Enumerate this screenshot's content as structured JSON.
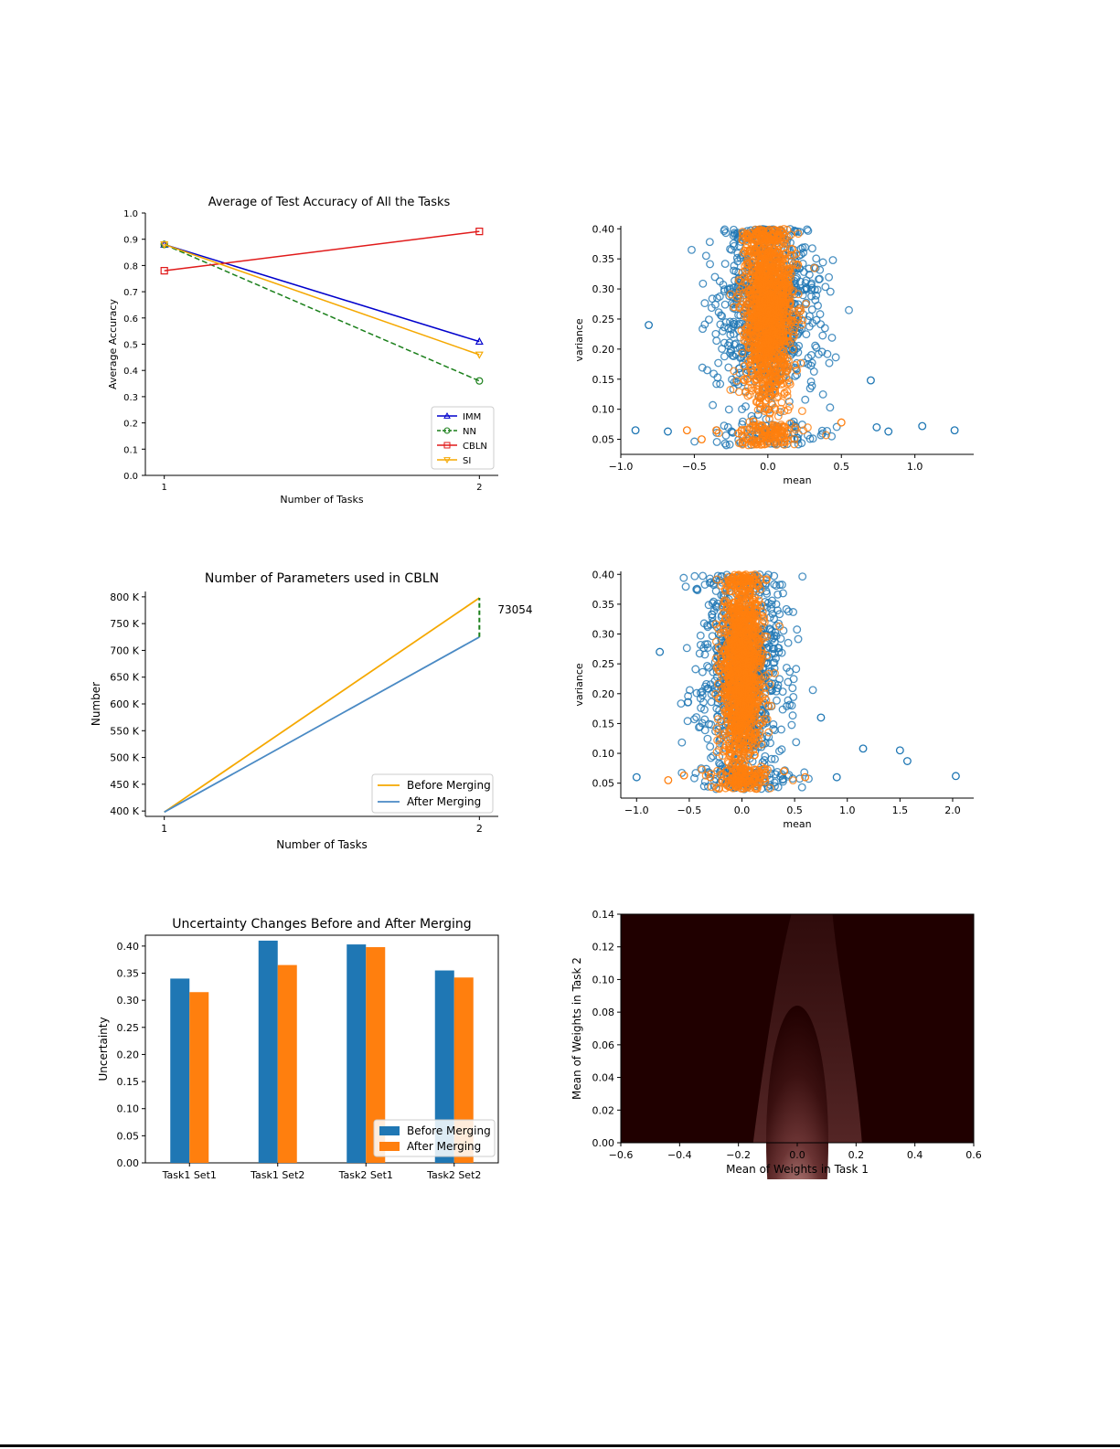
{
  "chart_data": [
    {
      "id": "accuracy",
      "type": "line",
      "title": "Average of Test Accuracy of All the Tasks",
      "xlabel": "Number of Tasks",
      "ylabel": "Average Accuracy",
      "x": [
        1,
        2
      ],
      "xticks": [
        "1",
        "2"
      ],
      "ylim": [
        0.0,
        1.0
      ],
      "yticks": [
        "0.0",
        "0.1",
        "0.2",
        "0.3",
        "0.4",
        "0.5",
        "0.6",
        "0.7",
        "0.8",
        "0.9",
        "1.0"
      ],
      "legend_position": "bottom-right",
      "series": [
        {
          "name": "IMM",
          "values": [
            0.88,
            0.51
          ],
          "color": "#0000cc",
          "marker": "triangle-up",
          "dash": "solid"
        },
        {
          "name": "NN",
          "values": [
            0.88,
            0.36
          ],
          "color": "#1a7f1a",
          "marker": "circle",
          "dash": "dashed"
        },
        {
          "name": "CBLN",
          "values": [
            0.78,
            0.93
          ],
          "color": "#e01a1a",
          "marker": "square",
          "dash": "solid"
        },
        {
          "name": "SI",
          "values": [
            0.88,
            0.46
          ],
          "color": "#f5a800",
          "marker": "triangle-down",
          "dash": "solid"
        }
      ]
    },
    {
      "id": "scatter-task1",
      "type": "scatter",
      "title": "",
      "xlabel": "mean",
      "ylabel": "variance",
      "xlim": [
        -1.0,
        1.3
      ],
      "ylim": [
        0.03,
        0.4
      ],
      "xticks": [
        "−1.0",
        "−0.5",
        "0.0",
        "0.5",
        "1.0"
      ],
      "yticks": [
        "0.05",
        "0.10",
        "0.15",
        "0.20",
        "0.25",
        "0.30",
        "0.35",
        "0.40"
      ],
      "series": [
        {
          "name": "blue",
          "color": "#1f77b4",
          "approx_center": [
            0.0,
            0.27
          ],
          "approx_spread": [
            0.3,
            0.08
          ],
          "outliers": [
            [
              -0.9,
              0.065
            ],
            [
              -0.68,
              0.063
            ],
            [
              -0.81,
              0.24
            ],
            [
              1.05,
              0.072
            ],
            [
              1.27,
              0.065
            ],
            [
              0.82,
              0.063
            ],
            [
              0.74,
              0.07
            ],
            [
              0.7,
              0.148
            ]
          ]
        },
        {
          "name": "orange",
          "color": "#ff7f0e",
          "approx_center": [
            0.0,
            0.27
          ],
          "approx_spread": [
            0.15,
            0.08
          ],
          "outliers": [
            [
              -0.55,
              0.065
            ],
            [
              -0.45,
              0.05
            ],
            [
              -0.35,
              0.065
            ],
            [
              -0.2,
              0.06
            ],
            [
              0.0,
              0.1
            ],
            [
              0.5,
              0.078
            ]
          ]
        }
      ]
    },
    {
      "id": "parameters",
      "type": "line",
      "title": "Number of Parameters used in CBLN",
      "xlabel": "Number of Tasks",
      "ylabel": "Number",
      "x": [
        1,
        2
      ],
      "xticks": [
        "1",
        "2"
      ],
      "ylim": [
        390,
        810
      ],
      "yticks": [
        "400 K",
        "450 K",
        "500 K",
        "550 K",
        "600 K",
        "650 K",
        "700 K",
        "750 K",
        "800 K"
      ],
      "legend_position": "bottom-right",
      "annotation": "73054",
      "annotation_between_values": [
        725,
        798
      ],
      "series": [
        {
          "name": "Before Merging",
          "values": [
            398,
            798
          ],
          "color": "#f5a800"
        },
        {
          "name": "After Merging",
          "values": [
            398,
            725
          ],
          "color": "#4a8ac4"
        }
      ]
    },
    {
      "id": "scatter-task2",
      "type": "scatter",
      "title": "",
      "xlabel": "mean",
      "ylabel": "variance",
      "xlim": [
        -1.1,
        2.2
      ],
      "ylim": [
        0.03,
        0.4
      ],
      "xticks": [
        "−1.0",
        "−0.5",
        "0.0",
        "0.5",
        "1.0",
        "1.5",
        "2.0"
      ],
      "yticks": [
        "0.05",
        "0.10",
        "0.15",
        "0.20",
        "0.25",
        "0.30",
        "0.35",
        "0.40"
      ],
      "series": [
        {
          "name": "blue",
          "color": "#1f77b4",
          "approx_center": [
            0.0,
            0.24
          ],
          "approx_spread": [
            0.35,
            0.09
          ],
          "outliers": [
            [
              -1.0,
              0.06
            ],
            [
              1.15,
              0.108
            ],
            [
              1.5,
              0.105
            ],
            [
              1.57,
              0.087
            ],
            [
              2.03,
              0.062
            ],
            [
              0.9,
              0.06
            ],
            [
              0.75,
              0.16
            ],
            [
              -0.78,
              0.27
            ]
          ]
        },
        {
          "name": "orange",
          "color": "#ff7f0e",
          "approx_center": [
            0.0,
            0.24
          ],
          "approx_spread": [
            0.17,
            0.09
          ],
          "outliers": [
            [
              -0.7,
              0.055
            ],
            [
              -0.55,
              0.063
            ],
            [
              -0.3,
              0.06
            ],
            [
              -0.15,
              0.07
            ],
            [
              0.4,
              0.07
            ],
            [
              0.6,
              0.06
            ]
          ]
        }
      ]
    },
    {
      "id": "uncertainty",
      "type": "bar",
      "title": "Uncertainty Changes Before and After Merging",
      "xlabel": "",
      "ylabel": "Uncertainty",
      "categories": [
        "Task1 Set1",
        "Task1 Set2",
        "Task2 Set1",
        "Task2 Set2"
      ],
      "ylim": [
        0.0,
        0.42
      ],
      "yticks": [
        "0.00",
        "0.05",
        "0.10",
        "0.15",
        "0.20",
        "0.25",
        "0.30",
        "0.35",
        "0.40"
      ],
      "legend_position": "bottom-right",
      "series": [
        {
          "name": "Before Merging",
          "values": [
            0.34,
            0.41,
            0.403,
            0.355
          ],
          "color": "#1f77b4"
        },
        {
          "name": "After Merging",
          "values": [
            0.315,
            0.365,
            0.398,
            0.342
          ],
          "color": "#ff7f0e"
        }
      ]
    },
    {
      "id": "density",
      "type": "heatmap",
      "title": "",
      "xlabel": "Mean of Weights in Task 1",
      "ylabel": "Mean of Weights in Task 2",
      "xlim": [
        -0.6,
        0.6
      ],
      "ylim": [
        0.0,
        0.14
      ],
      "xticks": [
        "−0.6",
        "−0.4",
        "−0.2",
        "0.0",
        "0.2",
        "0.4",
        "0.6"
      ],
      "yticks": [
        "0.00",
        "0.02",
        "0.04",
        "0.06",
        "0.08",
        "0.10",
        "0.12",
        "0.14"
      ],
      "colormap": "pink",
      "background_color": "#200000",
      "peak": [
        0.0,
        0.0
      ]
    }
  ]
}
